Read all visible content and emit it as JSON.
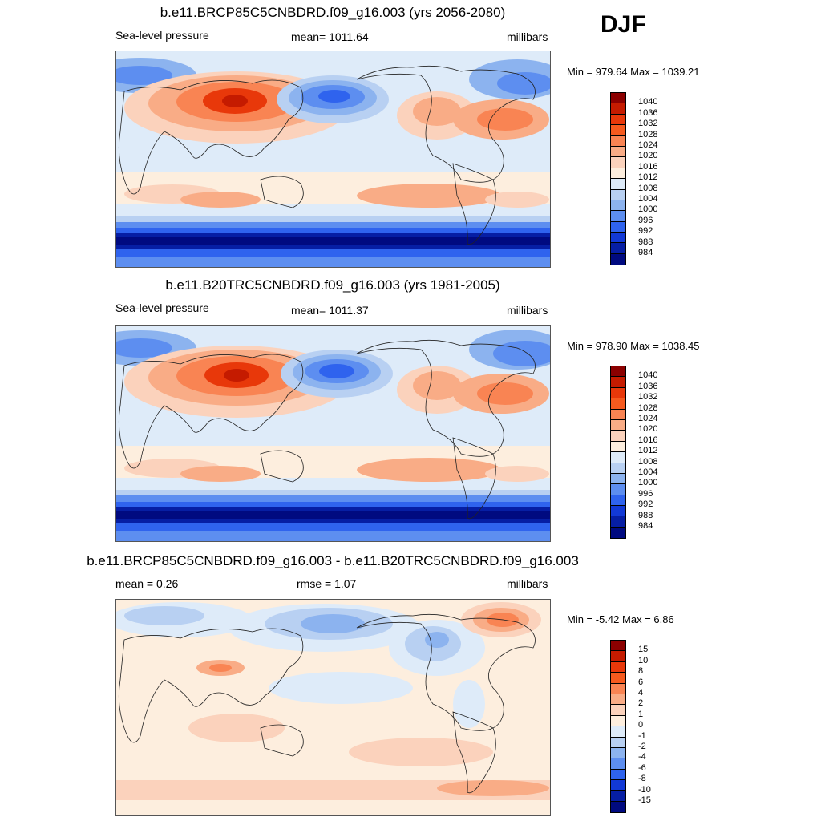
{
  "season": "DJF",
  "panels": [
    {
      "title": "b.e11.BRCP85C5CNBDRD.f09_g16.003 (yrs 2056-2080)",
      "left_label": "Sea-level pressure",
      "center_label": "mean=  1011.64",
      "units": "millibars",
      "minmax": "Min = 979.64 Max = 1039.21"
    },
    {
      "title": "b.e11.B20TRC5CNBDRD.f09_g16.003 (yrs 1981-2005)",
      "left_label": "Sea-level pressure",
      "center_label": "mean=  1011.37",
      "units": "millibars",
      "minmax": "Min = 978.90 Max = 1038.45"
    },
    {
      "title": "b.e11.BRCP85C5CNBDRD.f09_g16.003 - b.e11.B20TRC5CNBDRD.f09_g16.003",
      "left_label": "mean =   0.26",
      "center_label": "rmse =    1.07",
      "units": "millibars",
      "minmax": "Min =  -5.42 Max =   6.86"
    }
  ],
  "colorbars": {
    "slp": {
      "labels": [
        "1040",
        "1036",
        "1032",
        "1028",
        "1024",
        "1020",
        "1016",
        "1012",
        "1008",
        "1004",
        "1000",
        "996",
        "992",
        "988",
        "984"
      ],
      "colors": [
        "#8b0000",
        "#c51b00",
        "#e8380a",
        "#f65a1e",
        "#f98453",
        "#f9ac86",
        "#fbd2bc",
        "#fdeede",
        "#deebf9",
        "#b8d0f2",
        "#8cb3ef",
        "#5d8ef0",
        "#2f63ee",
        "#1239d6",
        "#061ea4",
        "#000a80"
      ]
    },
    "diff": {
      "labels": [
        "15",
        "10",
        "8",
        "6",
        "4",
        "2",
        "1",
        "0",
        "-1",
        "-2",
        "-4",
        "-6",
        "-8",
        "-10",
        "-15"
      ],
      "colors": [
        "#8b0000",
        "#c51b00",
        "#e8380a",
        "#f65a1e",
        "#f98453",
        "#f9ac86",
        "#fbd2bc",
        "#fdeede",
        "#deebf9",
        "#b8d0f2",
        "#8cb3ef",
        "#5d8ef0",
        "#2f63ee",
        "#1239d6",
        "#061ea4",
        "#000a80"
      ]
    }
  },
  "chart_data": [
    {
      "type": "heatmap",
      "title": "b.e11.BRCP85C5CNBDRD.f09_g16.003 (yrs 2056-2080)",
      "variable": "Sea-level pressure",
      "units": "millibars",
      "mean": 1011.64,
      "min": 979.64,
      "max": 1039.21,
      "contour_levels": [
        984,
        988,
        992,
        996,
        1000,
        1004,
        1008,
        1012,
        1016,
        1020,
        1024,
        1028,
        1032,
        1036,
        1040
      ]
    },
    {
      "type": "heatmap",
      "title": "b.e11.B20TRC5CNBDRD.f09_g16.003 (yrs 1981-2005)",
      "variable": "Sea-level pressure",
      "units": "millibars",
      "mean": 1011.37,
      "min": 978.9,
      "max": 1038.45,
      "contour_levels": [
        984,
        988,
        992,
        996,
        1000,
        1004,
        1008,
        1012,
        1016,
        1020,
        1024,
        1028,
        1032,
        1036,
        1040
      ]
    },
    {
      "type": "heatmap",
      "title": "b.e11.BRCP85C5CNBDRD.f09_g16.003 - b.e11.B20TRC5CNBDRD.f09_g16.003",
      "units": "millibars",
      "mean": 0.26,
      "rmse": 1.07,
      "min": -5.42,
      "max": 6.86,
      "contour_levels": [
        -15,
        -10,
        -8,
        -6,
        -4,
        -2,
        -1,
        0,
        1,
        2,
        4,
        6,
        8,
        10,
        15
      ]
    }
  ]
}
